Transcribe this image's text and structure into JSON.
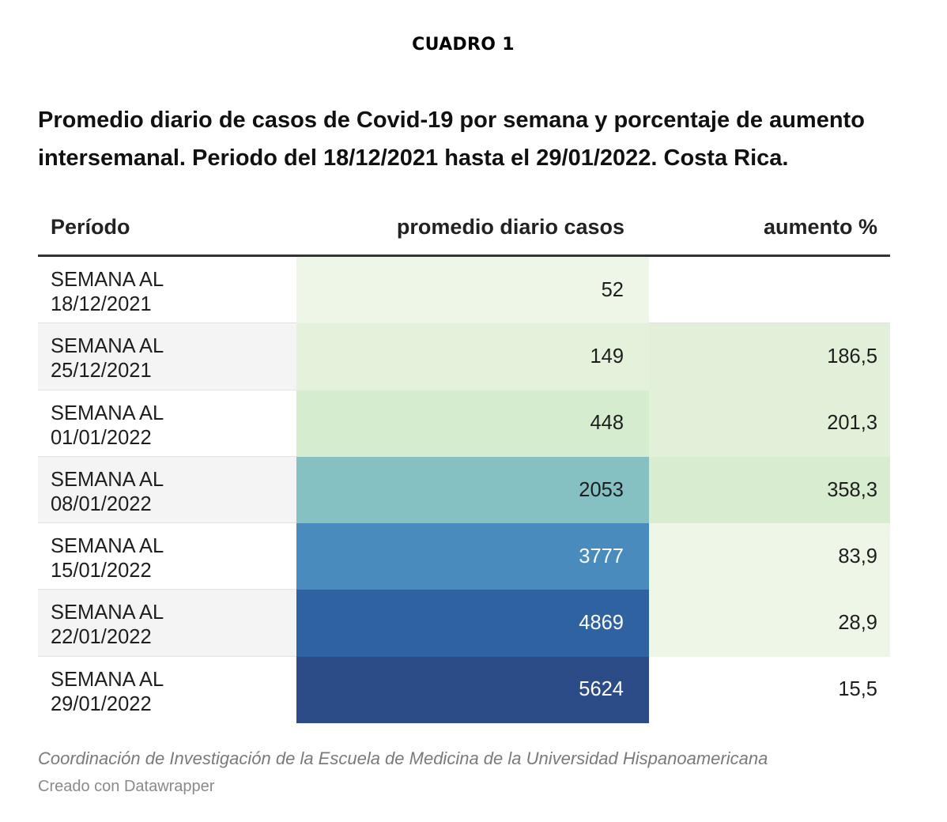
{
  "label": "CUADRO 1",
  "title": "Promedio diario de casos de Covid-19 por semana y porcentaje de aumento intersemanal. Periodo del 18/12/2021 hasta el 29/01/2022. Costa Rica.",
  "headers": {
    "periodo": "Período",
    "casos": "promedio diario casos",
    "aumento": "aumento %"
  },
  "source": "Coordinación de Investigación de la Escuela de Medicina de la Universidad Hispanoamericana",
  "credit": "Creado con Datawrapper",
  "colors": {
    "casos_scale": [
      "#eef6e7",
      "#e4f2dc",
      "#d6ecce",
      "#85c0c3",
      "#4a8bbd",
      "#2e62a1",
      "#2c4c87"
    ],
    "aumento_scale": [
      "#eef6e7",
      "#e2f0d9",
      "#d8ecd0"
    ],
    "dark_text": "#1e1e1e",
    "light_text": "#ffffff"
  },
  "chart_data": {
    "type": "table",
    "columns": [
      "Período",
      "promedio diario casos",
      "aumento %"
    ],
    "rows": [
      {
        "periodo_line1": "SEMANA AL",
        "periodo_line2": "18/12/2021",
        "casos": "52",
        "aumento": ""
      },
      {
        "periodo_line1": "SEMANA AL",
        "periodo_line2": "25/12/2021",
        "casos": "149",
        "aumento": "186,5"
      },
      {
        "periodo_line1": "SEMANA AL",
        "periodo_line2": "01/01/2022",
        "casos": "448",
        "aumento": "201,3"
      },
      {
        "periodo_line1": "SEMANA AL",
        "periodo_line2": "08/01/2022",
        "casos": "2053",
        "aumento": "358,3"
      },
      {
        "periodo_line1": "SEMANA AL",
        "periodo_line2": "15/01/2022",
        "casos": "3777",
        "aumento": "83,9"
      },
      {
        "periodo_line1": "SEMANA AL",
        "periodo_line2": "22/01/2022",
        "casos": "4869",
        "aumento": "28,9"
      },
      {
        "periodo_line1": "SEMANA AL",
        "periodo_line2": "29/01/2022",
        "casos": "5624",
        "aumento": "15,5"
      }
    ]
  }
}
